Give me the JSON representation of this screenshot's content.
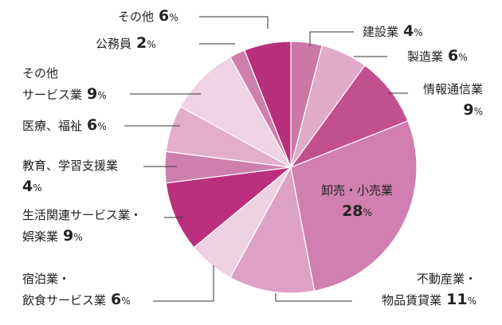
{
  "chart_data": {
    "type": "pie",
    "title": "",
    "unit": "%",
    "slices": [
      {
        "lines": [
          "建設業"
        ],
        "value": 4,
        "color": "#cc78a6"
      },
      {
        "lines": [
          "製造業"
        ],
        "value": 6,
        "color": "#e0aacb"
      },
      {
        "lines": [
          "情報通信業"
        ],
        "value": 9,
        "color": "#c24f8e"
      },
      {
        "lines": [
          "卸売・小売業"
        ],
        "value": 28,
        "color": "#d07fb0"
      },
      {
        "lines": [
          "不動産業・",
          "物品賃貸業"
        ],
        "value": 11,
        "color": "#dea1c6"
      },
      {
        "lines": [
          "宿泊業・",
          "飲食サービス業"
        ],
        "value": 6,
        "color": "#eed1e1"
      },
      {
        "lines": [
          "生活関連サービス業・",
          "娯楽業"
        ],
        "value": 9,
        "color": "#bb2f7d"
      },
      {
        "lines": [
          "教育、学習支援業"
        ],
        "value": 4,
        "color": "#cf7fae"
      },
      {
        "lines": [
          "医療、福祉"
        ],
        "value": 6,
        "color": "#e3aece"
      },
      {
        "lines": [
          "その他",
          "サービス業"
        ],
        "value": 9,
        "color": "#efd2e3"
      },
      {
        "lines": [
          "公務員"
        ],
        "value": 2,
        "color": "#cf7fac"
      },
      {
        "lines": [
          "その他"
        ],
        "value": 6,
        "color": "#b8307c"
      }
    ]
  }
}
